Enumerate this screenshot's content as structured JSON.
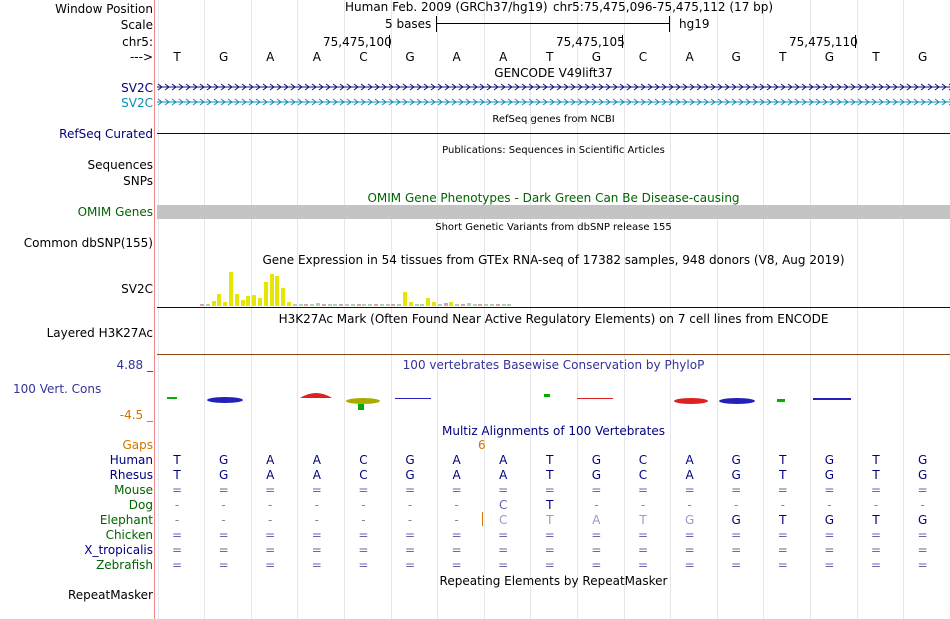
{
  "header": {
    "window_position_label": "Window Position",
    "scale_label": "Scale",
    "chrom_label": "chr5:",
    "arrow_label": "--->",
    "assembly": "Human Feb. 2009 (GRCh37/hg19)",
    "position": "chr5:75,475,096-75,475,112 (17 bp)",
    "scale_text": "5 bases",
    "db": "hg19",
    "ticks": [
      "75,475,100",
      "75,475,105",
      "75,475,110"
    ],
    "bases": [
      "T",
      "G",
      "A",
      "A",
      "C",
      "G",
      "A",
      "A",
      "T",
      "G",
      "C",
      "A",
      "G",
      "T",
      "G",
      "T",
      "G"
    ]
  },
  "tracks": {
    "gencode": {
      "title": "GENCODE V49lift37",
      "row1_label": "SV2C",
      "row2_label": "SV2C"
    },
    "refseq": {
      "title": "RefSeq genes from NCBI",
      "label": "RefSeq Curated"
    },
    "publications": {
      "title": "Publications: Sequences in Scientific Articles",
      "label1": "Sequences",
      "label2": "SNPs"
    },
    "omim": {
      "title": "OMIM Gene Phenotypes - Dark Green Can Be Disease-causing",
      "label": "OMIM Genes"
    },
    "dbsnp": {
      "title": "Short Genetic Variants from dbSNP release 155",
      "label": "Common dbSNP(155)"
    },
    "gtex": {
      "title": "Gene Expression in 54 tissues from GTEx RNA-seq of 17382 samples, 948 donors (V8, Aug 2019)",
      "label": "SV2C",
      "color_high": "#e6e600",
      "color_low": "#ffb6c1",
      "levels": [
        0.02,
        0.05,
        0.12,
        0.3,
        0.1,
        0.85,
        0.3,
        0.15,
        0.25,
        0.28,
        0.2,
        0.6,
        0.8,
        0.75,
        0.45,
        0.1,
        0.05,
        0.05,
        0.05,
        0.05,
        0.08,
        0.05,
        0.05,
        0.03,
        0.05,
        0.04,
        0.05,
        0.03,
        0.03,
        0.02,
        0.02,
        0.02,
        0.05,
        0.03,
        0.02,
        0.35,
        0.1,
        0.02,
        0.03,
        0.2,
        0.1,
        0.05,
        0.08,
        0.1,
        0.05,
        0.06,
        0.08,
        0.02,
        0.02,
        0.02,
        0.02,
        0.02,
        0.02,
        0.02
      ]
    },
    "h3k27ac": {
      "title": "H3K27Ac Mark (Often Found Near Active Regulatory Elements) on 7 cell lines from ENCODE",
      "label": "Layered H3K27Ac"
    },
    "phylop": {
      "title": "100 vertebrates Basewise Conservation by PhyloP",
      "label": "100 Vert. Cons",
      "max": "4.88 _",
      "min": "-4.5 _",
      "color": "#333399"
    },
    "multiz": {
      "title": "Multiz Alignments of 100 Vertebrates",
      "gaps_label": "Gaps",
      "gap_count": "6",
      "species": [
        {
          "name": "Human",
          "seq": [
            "T",
            "G",
            "A",
            "A",
            "C",
            "G",
            "A",
            "A",
            "T",
            "G",
            "C",
            "A",
            "G",
            "T",
            "G",
            "T",
            "G"
          ]
        },
        {
          "name": "Rhesus",
          "seq": [
            "T",
            "G",
            "A",
            "A",
            "C",
            "G",
            "A",
            "A",
            "T",
            "G",
            "C",
            "A",
            "G",
            "T",
            "G",
            "T",
            "G"
          ]
        },
        {
          "name": "Mouse",
          "seq": [
            "=",
            "=",
            "=",
            "=",
            "=",
            "=",
            "=",
            "=",
            "=",
            "=",
            "=",
            "=",
            "=",
            "=",
            "=",
            "=",
            "="
          ]
        },
        {
          "name": "Dog",
          "seq": [
            "-",
            "-",
            "-",
            "-",
            "-",
            "-",
            "-",
            "C",
            "T",
            "-",
            "-",
            "-",
            "-",
            "-",
            "-",
            "-",
            "-"
          ]
        },
        {
          "name": "Elephant",
          "seq": [
            "-",
            "-",
            "-",
            "-",
            "-",
            "-",
            "-",
            "C",
            "T",
            "A",
            "T",
            "G",
            "G",
            "T",
            "G",
            "T",
            "G"
          ]
        },
        {
          "name": "Chicken",
          "seq": [
            "=",
            "=",
            "=",
            "=",
            "=",
            "=",
            "=",
            "=",
            "=",
            "=",
            "=",
            "=",
            "=",
            "=",
            "=",
            "=",
            "="
          ]
        },
        {
          "name": "X_tropicalis",
          "seq": [
            "=",
            "=",
            "=",
            "=",
            "=",
            "=",
            "=",
            "=",
            "=",
            "=",
            "=",
            "=",
            "=",
            "=",
            "=",
            "=",
            "="
          ]
        },
        {
          "name": "Zebrafish",
          "seq": [
            "=",
            "=",
            "=",
            "=",
            "=",
            "=",
            "=",
            "=",
            "=",
            "=",
            "=",
            "=",
            "=",
            "=",
            "=",
            "=",
            "="
          ]
        }
      ]
    },
    "repeatmasker": {
      "title": "Repeating Elements by RepeatMasker",
      "label": "RepeatMasker"
    }
  },
  "colors": {
    "label_blue": "#000080",
    "label_green": "#006400",
    "label_orange": "#cc7700",
    "sv2c_dark": "#0c0c78",
    "sv2c_light": "#0c8cb4",
    "omim_fill": "#c4c4c4",
    "h3k27ac_line": "#8b4513"
  }
}
